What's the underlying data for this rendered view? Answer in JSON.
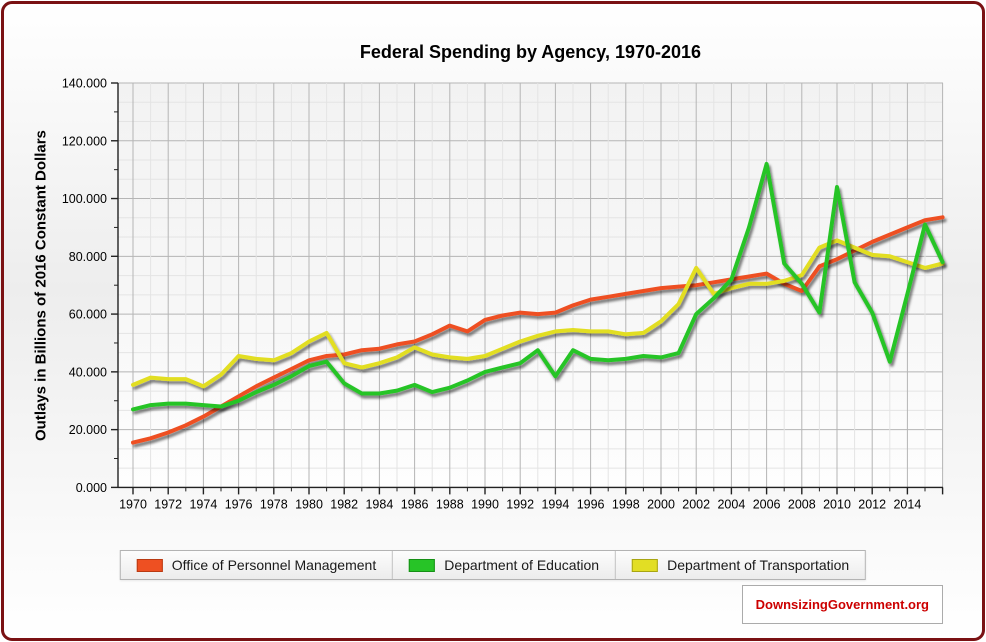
{
  "title": "Federal Spending by Agency, 1970-2016",
  "y_axis_label": "Outlays in Billions of 2016 Constant Dollars",
  "footer": {
    "site": "DownsizingGovernment.org",
    "color": "#cc0000"
  },
  "colors": {
    "frame_border": "#7a1113",
    "axis": "#222222",
    "grid_major": "#b5b5b5",
    "grid_minor": "#e4e4e4",
    "tick_text": "#000000"
  },
  "chart_data": {
    "type": "line",
    "title": "Federal Spending by Agency, 1970-2016",
    "xlabel": "",
    "ylabel": "Outlays in Billions of 2016 Constant Dollars",
    "ylim": [
      0,
      140
    ],
    "xlim": [
      1970,
      2016
    ],
    "grid": {
      "major_y_every": 20,
      "minor_y_every": 6.667,
      "major_x_every": 2,
      "minor_x_every": 1
    },
    "legend_position": "bottom",
    "x": [
      1970,
      1971,
      1972,
      1973,
      1974,
      1975,
      1976,
      1977,
      1978,
      1979,
      1980,
      1981,
      1982,
      1983,
      1984,
      1985,
      1986,
      1987,
      1988,
      1989,
      1990,
      1991,
      1992,
      1993,
      1994,
      1995,
      1996,
      1997,
      1998,
      1999,
      2000,
      2001,
      2002,
      2003,
      2004,
      2005,
      2006,
      2007,
      2008,
      2009,
      2010,
      2011,
      2012,
      2013,
      2014,
      2015,
      2016
    ],
    "series": [
      {
        "name": "Office of Personnel Management",
        "slug": "opm",
        "color": "#ee5022",
        "swatch_border": "#b93a12",
        "values": [
          15.5,
          17,
          19,
          21.5,
          24.5,
          28,
          31.5,
          35,
          38,
          41,
          44,
          45.5,
          46,
          47.5,
          48,
          49.5,
          50.5,
          53,
          56,
          54,
          58,
          59.5,
          60.5,
          60,
          60.5,
          63,
          65,
          66,
          67,
          68,
          69,
          69.5,
          70,
          71,
          72,
          73,
          74,
          70.5,
          68,
          76.5,
          79,
          82,
          85,
          87.5,
          90,
          92.5,
          93.5
        ]
      },
      {
        "name": "Department of Education",
        "slug": "education",
        "color": "#27c427",
        "swatch_border": "#169016",
        "values": [
          27,
          28.5,
          29,
          29,
          28.5,
          28,
          30,
          33,
          35.5,
          38.5,
          42,
          43.5,
          36,
          32.5,
          32.5,
          33.5,
          35.5,
          33,
          34.5,
          37,
          40,
          41.5,
          43,
          47.5,
          38.5,
          47.5,
          44.5,
          44,
          44.5,
          45.5,
          45,
          46.5,
          60,
          65.5,
          72,
          90,
          112,
          77.5,
          70.5,
          60.5,
          104,
          71,
          60.5,
          43.5,
          67,
          91,
          78
        ]
      },
      {
        "name": "Department of Transportation",
        "slug": "transportation",
        "color": "#e2de24",
        "swatch_border": "#a8a512",
        "values": [
          35.5,
          38,
          37.5,
          37.5,
          35,
          39,
          45.5,
          44.5,
          44,
          46.5,
          50.5,
          53.5,
          43,
          41.5,
          43,
          45,
          48.5,
          46,
          45,
          44.5,
          45.5,
          48,
          50.5,
          52.5,
          54,
          54.5,
          54,
          54,
          53,
          53.5,
          57.5,
          63.5,
          76,
          67,
          69,
          70.5,
          70.5,
          71.5,
          73.5,
          83,
          85.5,
          83,
          80.5,
          80,
          78,
          76,
          77.5
        ]
      }
    ],
    "x_ticks": {
      "values": [
        1970,
        1972,
        1974,
        1976,
        1978,
        1980,
        1982,
        1984,
        1986,
        1988,
        1990,
        1992,
        1994,
        1996,
        1998,
        2000,
        2002,
        2004,
        2006,
        2008,
        2010,
        2012,
        2014
      ],
      "labels": [
        "1970",
        "1972",
        "1974",
        "1976",
        "1978",
        "1980",
        "1982",
        "1984",
        "1986",
        "1988",
        "1990",
        "1992",
        "1994",
        "1996",
        "1998",
        "2000",
        "2002",
        "2004",
        "2006",
        "2008",
        "2010",
        "2012",
        "2014"
      ]
    },
    "y_ticks": {
      "values": [
        0,
        20,
        40,
        60,
        80,
        100,
        120,
        140
      ],
      "labels": [
        "0.000",
        "20.000",
        "40.000",
        "60.000",
        "80.000",
        "100.000",
        "120.000",
        "140.000"
      ]
    }
  }
}
